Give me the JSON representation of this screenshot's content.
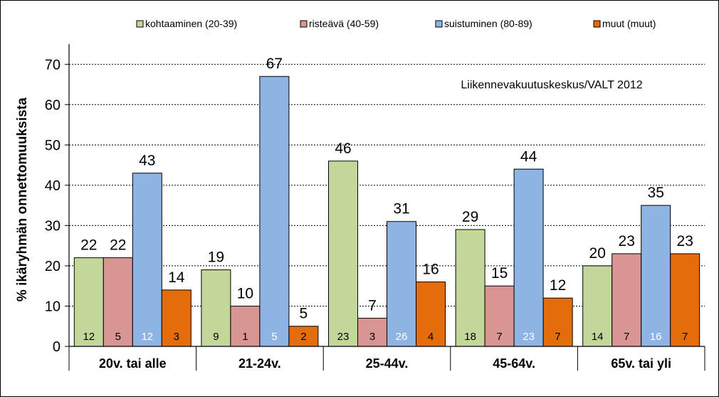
{
  "chart_data": {
    "type": "bar",
    "ylabel": "% ikäryhmän onnettomuuksista",
    "ylim": [
      0,
      70
    ],
    "yticks": [
      0,
      10,
      20,
      30,
      40,
      50,
      60,
      70
    ],
    "grid": true,
    "grid_style": "dashed horizontal",
    "legend_position": "top",
    "annotation": "Liikennevakuutuskeskus/VALT 2012",
    "categories": [
      "20v. tai alle",
      "21-24v.",
      "25-44v.",
      "45-64v.",
      "65v. tai yli"
    ],
    "series": [
      {
        "name": "kohtaaminen (20-39)",
        "color": "#c4d79b",
        "values": [
          22,
          19,
          46,
          29,
          20
        ],
        "inner_values": [
          12,
          9,
          23,
          18,
          14
        ],
        "inner_color": "#000000"
      },
      {
        "name": "risteävä (40-59)",
        "color": "#d99594",
        "values": [
          22,
          10,
          7,
          15,
          23
        ],
        "inner_values": [
          5,
          1,
          3,
          7,
          7
        ],
        "inner_color": "#000000"
      },
      {
        "name": "suistuminen (80-89)",
        "color": "#8db4e2",
        "values": [
          43,
          67,
          31,
          44,
          35
        ],
        "inner_values": [
          12,
          5,
          26,
          23,
          16
        ],
        "inner_color": "#ffffff"
      },
      {
        "name": "muut (muut)",
        "color": "#e46c0a",
        "values": [
          14,
          5,
          16,
          12,
          23
        ],
        "inner_values": [
          3,
          2,
          4,
          7,
          7
        ],
        "inner_color": "#000000"
      }
    ]
  }
}
